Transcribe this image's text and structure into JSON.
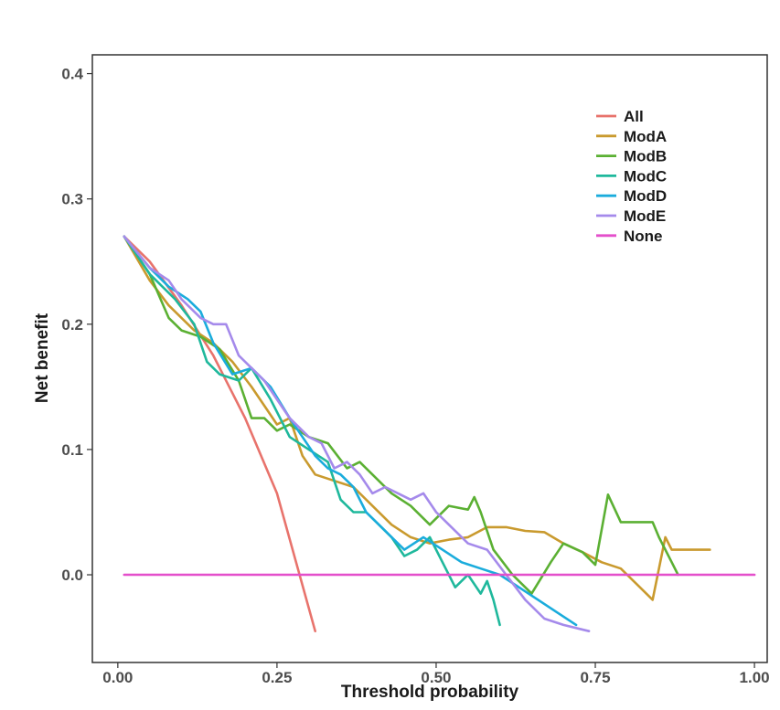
{
  "chart_data": {
    "type": "line",
    "xlabel": "Threshold probability",
    "ylabel": "Net benefit",
    "xlim": [
      -0.04,
      1.02
    ],
    "ylim": [
      -0.07,
      0.415
    ],
    "x_ticks": [
      0.0,
      0.25,
      0.5,
      0.75,
      1.0
    ],
    "x_tick_labels": [
      "0.00",
      "0.25",
      "0.50",
      "0.75",
      "1.00"
    ],
    "y_ticks": [
      0.0,
      0.1,
      0.2,
      0.3,
      0.4
    ],
    "y_tick_labels": [
      "0.0",
      "0.1",
      "0.2",
      "0.3",
      "0.4"
    ],
    "grid": false,
    "legend_position": "top-right",
    "series": [
      {
        "name": "All",
        "color": "#E8736C",
        "points": [
          [
            0.01,
            0.27
          ],
          [
            0.05,
            0.25
          ],
          [
            0.1,
            0.215
          ],
          [
            0.15,
            0.175
          ],
          [
            0.2,
            0.125
          ],
          [
            0.25,
            0.065
          ],
          [
            0.28,
            0.01
          ],
          [
            0.31,
            -0.045
          ]
        ]
      },
      {
        "name": "ModA",
        "color": "#C99A2E",
        "points": [
          [
            0.01,
            0.27
          ],
          [
            0.05,
            0.235
          ],
          [
            0.08,
            0.215
          ],
          [
            0.12,
            0.195
          ],
          [
            0.15,
            0.185
          ],
          [
            0.18,
            0.17
          ],
          [
            0.21,
            0.15
          ],
          [
            0.23,
            0.135
          ],
          [
            0.25,
            0.12
          ],
          [
            0.27,
            0.125
          ],
          [
            0.29,
            0.095
          ],
          [
            0.31,
            0.08
          ],
          [
            0.34,
            0.075
          ],
          [
            0.37,
            0.07
          ],
          [
            0.4,
            0.055
          ],
          [
            0.43,
            0.04
          ],
          [
            0.46,
            0.03
          ],
          [
            0.49,
            0.025
          ],
          [
            0.52,
            0.028
          ],
          [
            0.55,
            0.03
          ],
          [
            0.58,
            0.038
          ],
          [
            0.61,
            0.038
          ],
          [
            0.64,
            0.035
          ],
          [
            0.67,
            0.034
          ],
          [
            0.7,
            0.025
          ],
          [
            0.73,
            0.018
          ],
          [
            0.76,
            0.01
          ],
          [
            0.79,
            0.005
          ],
          [
            0.82,
            -0.01
          ],
          [
            0.84,
            -0.02
          ],
          [
            0.86,
            0.03
          ],
          [
            0.87,
            0.02
          ],
          [
            0.93,
            0.02
          ]
        ]
      },
      {
        "name": "ModB",
        "color": "#5BB033",
        "points": [
          [
            0.01,
            0.27
          ],
          [
            0.05,
            0.24
          ],
          [
            0.08,
            0.205
          ],
          [
            0.1,
            0.195
          ],
          [
            0.13,
            0.19
          ],
          [
            0.16,
            0.18
          ],
          [
            0.19,
            0.155
          ],
          [
            0.21,
            0.125
          ],
          [
            0.23,
            0.125
          ],
          [
            0.25,
            0.115
          ],
          [
            0.27,
            0.12
          ],
          [
            0.3,
            0.11
          ],
          [
            0.33,
            0.105
          ],
          [
            0.36,
            0.085
          ],
          [
            0.38,
            0.09
          ],
          [
            0.4,
            0.08
          ],
          [
            0.43,
            0.065
          ],
          [
            0.46,
            0.055
          ],
          [
            0.49,
            0.04
          ],
          [
            0.52,
            0.055
          ],
          [
            0.55,
            0.052
          ],
          [
            0.56,
            0.062
          ],
          [
            0.57,
            0.05
          ],
          [
            0.59,
            0.02
          ],
          [
            0.62,
            0.0
          ],
          [
            0.65,
            -0.015
          ],
          [
            0.68,
            0.01
          ],
          [
            0.7,
            0.025
          ],
          [
            0.73,
            0.018
          ],
          [
            0.75,
            0.008
          ],
          [
            0.77,
            0.064
          ],
          [
            0.79,
            0.042
          ],
          [
            0.81,
            0.042
          ],
          [
            0.84,
            0.042
          ],
          [
            0.85,
            0.03
          ],
          [
            0.87,
            0.01
          ],
          [
            0.88,
            0.0
          ]
        ]
      },
      {
        "name": "ModC",
        "color": "#1FB89C",
        "points": [
          [
            0.01,
            0.27
          ],
          [
            0.05,
            0.24
          ],
          [
            0.09,
            0.22
          ],
          [
            0.12,
            0.2
          ],
          [
            0.14,
            0.17
          ],
          [
            0.16,
            0.16
          ],
          [
            0.19,
            0.155
          ],
          [
            0.21,
            0.165
          ],
          [
            0.24,
            0.14
          ],
          [
            0.27,
            0.11
          ],
          [
            0.3,
            0.1
          ],
          [
            0.33,
            0.09
          ],
          [
            0.35,
            0.06
          ],
          [
            0.37,
            0.05
          ],
          [
            0.39,
            0.05
          ],
          [
            0.41,
            0.04
          ],
          [
            0.43,
            0.03
          ],
          [
            0.45,
            0.015
          ],
          [
            0.47,
            0.02
          ],
          [
            0.49,
            0.03
          ],
          [
            0.51,
            0.01
          ],
          [
            0.53,
            -0.01
          ],
          [
            0.55,
            0.0
          ],
          [
            0.57,
            -0.015
          ],
          [
            0.58,
            -0.005
          ],
          [
            0.59,
            -0.02
          ],
          [
            0.6,
            -0.04
          ]
        ]
      },
      {
        "name": "ModD",
        "color": "#1AACDC",
        "points": [
          [
            0.01,
            0.27
          ],
          [
            0.05,
            0.245
          ],
          [
            0.08,
            0.23
          ],
          [
            0.11,
            0.22
          ],
          [
            0.13,
            0.21
          ],
          [
            0.15,
            0.185
          ],
          [
            0.18,
            0.16
          ],
          [
            0.21,
            0.165
          ],
          [
            0.24,
            0.15
          ],
          [
            0.27,
            0.125
          ],
          [
            0.29,
            0.11
          ],
          [
            0.31,
            0.095
          ],
          [
            0.33,
            0.085
          ],
          [
            0.35,
            0.08
          ],
          [
            0.37,
            0.07
          ],
          [
            0.39,
            0.05
          ],
          [
            0.42,
            0.035
          ],
          [
            0.45,
            0.02
          ],
          [
            0.48,
            0.03
          ],
          [
            0.51,
            0.02
          ],
          [
            0.54,
            0.01
          ],
          [
            0.57,
            0.005
          ],
          [
            0.6,
            0.0
          ],
          [
            0.63,
            -0.01
          ],
          [
            0.66,
            -0.02
          ],
          [
            0.69,
            -0.03
          ],
          [
            0.72,
            -0.04
          ]
        ]
      },
      {
        "name": "ModE",
        "color": "#A58AEB",
        "points": [
          [
            0.01,
            0.27
          ],
          [
            0.05,
            0.245
          ],
          [
            0.08,
            0.235
          ],
          [
            0.1,
            0.22
          ],
          [
            0.13,
            0.205
          ],
          [
            0.15,
            0.2
          ],
          [
            0.17,
            0.2
          ],
          [
            0.19,
            0.175
          ],
          [
            0.21,
            0.165
          ],
          [
            0.23,
            0.155
          ],
          [
            0.25,
            0.14
          ],
          [
            0.27,
            0.125
          ],
          [
            0.3,
            0.11
          ],
          [
            0.32,
            0.105
          ],
          [
            0.34,
            0.085
          ],
          [
            0.36,
            0.09
          ],
          [
            0.38,
            0.08
          ],
          [
            0.4,
            0.065
          ],
          [
            0.42,
            0.07
          ],
          [
            0.44,
            0.065
          ],
          [
            0.46,
            0.06
          ],
          [
            0.48,
            0.065
          ],
          [
            0.5,
            0.05
          ],
          [
            0.52,
            0.04
          ],
          [
            0.55,
            0.025
          ],
          [
            0.58,
            0.02
          ],
          [
            0.61,
            0.0
          ],
          [
            0.64,
            -0.02
          ],
          [
            0.67,
            -0.035
          ],
          [
            0.7,
            -0.04
          ],
          [
            0.74,
            -0.045
          ]
        ]
      },
      {
        "name": "None",
        "color": "#E44FCB",
        "points": [
          [
            0.01,
            0.0
          ],
          [
            1.0,
            0.0
          ]
        ]
      }
    ]
  }
}
